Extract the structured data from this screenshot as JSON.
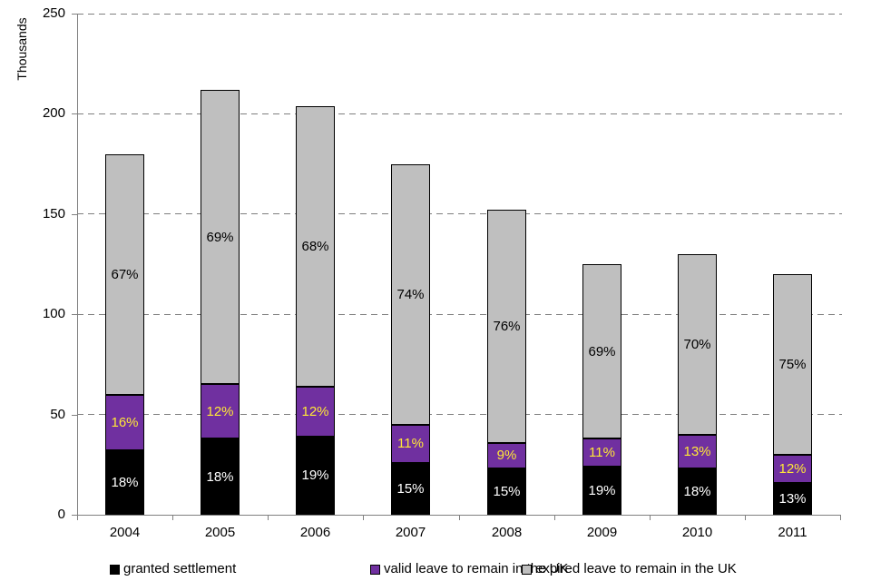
{
  "chart_data": {
    "type": "bar",
    "stacked": true,
    "title": "",
    "ylabel": "Thousands",
    "xlabel": "",
    "ylim": [
      0,
      250
    ],
    "yticks": [
      0,
      50,
      100,
      150,
      200,
      250
    ],
    "grid": "horizontal-dashed",
    "legend_position": "bottom",
    "categories": [
      "2004",
      "2005",
      "2006",
      "2007",
      "2008",
      "2009",
      "2010",
      "2011"
    ],
    "totals": [
      180,
      212,
      204,
      175,
      152,
      125,
      130,
      120
    ],
    "series": [
      {
        "name": "granted settlement",
        "color": "#000000",
        "label_color": "#FFFFFF",
        "values": [
          32,
          38,
          39,
          26,
          23,
          24,
          23,
          16
        ],
        "labels": [
          "18%",
          "18%",
          "19%",
          "15%",
          "15%",
          "19%",
          "18%",
          "13%"
        ]
      },
      {
        "name": "valid leave to remain in the UK",
        "color": "#7030A0",
        "label_color": "#FFE837",
        "values": [
          28,
          27,
          25,
          19,
          13,
          14,
          17,
          14
        ],
        "labels": [
          "16%",
          "12%",
          "12%",
          "11%",
          "9%",
          "11%",
          "13%",
          "12%"
        ]
      },
      {
        "name": "expired leave to remain in the UK",
        "color": "#BFBFBF",
        "label_color": "#000000",
        "values": [
          120,
          147,
          140,
          130,
          116,
          87,
          90,
          90
        ],
        "labels": [
          "67%",
          "69%",
          "68%",
          "74%",
          "76%",
          "69%",
          "70%",
          "75%"
        ]
      }
    ],
    "axis_color": "#808080",
    "gridline_color": "#7F7F7F"
  }
}
